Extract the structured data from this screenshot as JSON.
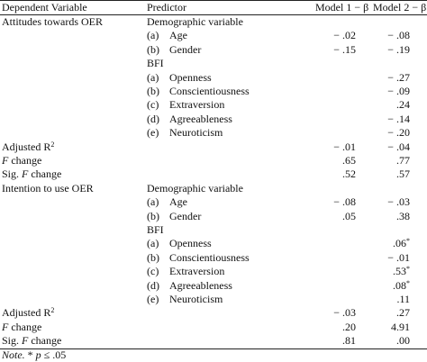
{
  "header": {
    "dependent_variable": "Dependent Variable",
    "predictor": "Predictor",
    "model1": "Model 1 − β",
    "model2": "Model 2 − β"
  },
  "rows": [
    {
      "dv": "Attitudes towards OER",
      "label": "",
      "predictor": "Demographic variable",
      "m1": "",
      "m2": ""
    },
    {
      "dv": "",
      "label": "(a)",
      "predictor": "Age",
      "m1": "− .02",
      "m2": "− .08"
    },
    {
      "dv": "",
      "label": "(b)",
      "predictor": "Gender",
      "m1": "− .15",
      "m2": "− .19"
    },
    {
      "dv": "",
      "label": "",
      "predictor": "BFI",
      "m1": "",
      "m2": ""
    },
    {
      "dv": "",
      "label": "(a)",
      "predictor": "Openness",
      "m1": "",
      "m2": "− .27"
    },
    {
      "dv": "",
      "label": "(b)",
      "predictor": "Conscientiousness",
      "m1": "",
      "m2": "− .09"
    },
    {
      "dv": "",
      "label": "(c)",
      "predictor": "Extraversion",
      "m1": "",
      "m2": ".24"
    },
    {
      "dv": "",
      "label": "(d)",
      "predictor": "Agreeableness",
      "m1": "",
      "m2": "− .14"
    },
    {
      "dv": "",
      "label": "(e)",
      "predictor": "Neuroticism",
      "m1": "",
      "m2": "− .20"
    },
    {
      "dv": "Adjusted R",
      "dv_sup": "2",
      "label": "",
      "predictor": "",
      "m1": "− .01",
      "m2": "− .04"
    },
    {
      "dv": "F",
      "dv_suffix": " change",
      "italic": true,
      "label": "",
      "predictor": "",
      "m1": ".65",
      "m2": ".77"
    },
    {
      "dv": "Sig. ",
      "dv_italic": "F",
      "dv_suffix": " change",
      "label": "",
      "predictor": "",
      "m1": ".52",
      "m2": ".57"
    },
    {
      "dv": "Intention to use OER",
      "label": "",
      "predictor": "Demographic variable",
      "m1": "",
      "m2": ""
    },
    {
      "dv": "",
      "label": "(a)",
      "predictor": "Age",
      "m1": "− .08",
      "m2": "− .03"
    },
    {
      "dv": "",
      "label": "(b)",
      "predictor": "Gender",
      "m1": ".05",
      "m2": ".38"
    },
    {
      "dv": "",
      "label": "",
      "predictor": "BFI",
      "m1": "",
      "m2": ""
    },
    {
      "dv": "",
      "label": "(a)",
      "predictor": "Openness",
      "m1": "",
      "m2": ".06",
      "m2_sup": "*"
    },
    {
      "dv": "",
      "label": "(b)",
      "predictor": "Conscientiousness",
      "m1": "",
      "m2": "− .01"
    },
    {
      "dv": "",
      "label": "(c)",
      "predictor": "Extraversion",
      "m1": "",
      "m2": ".53",
      "m2_sup": "*"
    },
    {
      "dv": "",
      "label": "(d)",
      "predictor": "Agreeableness",
      "m1": "",
      "m2": ".08",
      "m2_sup": "*"
    },
    {
      "dv": "",
      "label": "(e)",
      "predictor": "Neuroticism",
      "m1": "",
      "m2": ".11"
    },
    {
      "dv": "Adjusted R",
      "dv_sup": "2",
      "label": "",
      "predictor": "",
      "m1": "− .03",
      "m2": ".27"
    },
    {
      "dv": "F",
      "dv_suffix": " change",
      "italic": true,
      "label": "",
      "predictor": "",
      "m1": ".20",
      "m2": "4.91"
    },
    {
      "dv": "Sig. ",
      "dv_italic": "F",
      "dv_suffix": " change",
      "label": "",
      "predictor": "",
      "m1": ".81",
      "m2": ".00"
    }
  ],
  "note": {
    "prefix": "Note.",
    "body_a": " * ",
    "p": "p",
    "body_b": " ≤ .05"
  }
}
